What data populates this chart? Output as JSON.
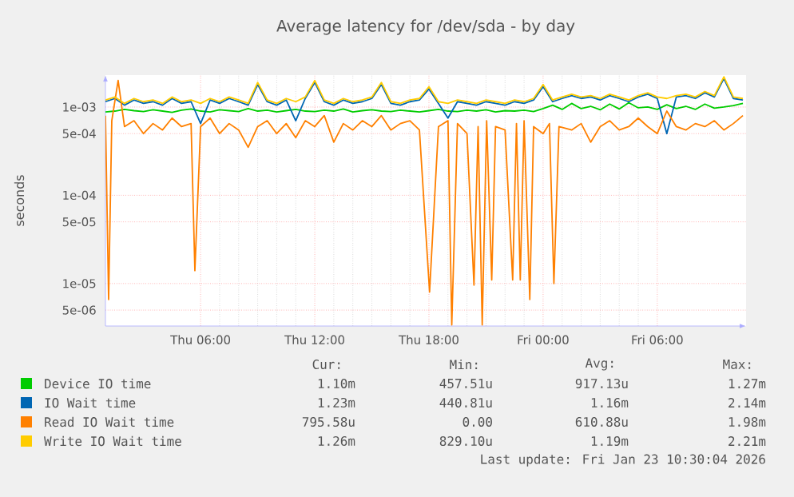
{
  "chart_data": {
    "type": "line",
    "title": "Average latency for /dev/sda - by day",
    "ylabel": "seconds",
    "log": "y",
    "grid": true,
    "legend": "bottom",
    "marker": "none",
    "line_style": "solid",
    "xlim": [
      "2026-01-22T01:00",
      "2026-01-23T10:40"
    ],
    "xticks": [
      {
        "value": "2026-01-22T06:00",
        "label": "Thu 06:00"
      },
      {
        "value": "2026-01-22T12:00",
        "label": "Thu 12:00"
      },
      {
        "value": "2026-01-22T18:00",
        "label": "Thu 18:00"
      },
      {
        "value": "2026-01-23T00:00",
        "label": "Fri 00:00"
      },
      {
        "value": "2026-01-23T06:00",
        "label": "Fri 06:00"
      }
    ],
    "ylim": [
      3.3e-06,
      0.0023
    ],
    "yticks": [
      {
        "value": 5e-06,
        "label": "5e-06"
      },
      {
        "value": 1e-05,
        "label": "1e-05"
      },
      {
        "value": 5e-05,
        "label": "5e-05"
      },
      {
        "value": 0.0001,
        "label": "1e-04"
      },
      {
        "value": 0.0005,
        "label": "5e-04"
      },
      {
        "value": 0.001,
        "label": "1e-03"
      }
    ],
    "x": [
      "2026-01-22T01:00",
      "2026-01-22T01:30",
      "2026-01-22T02:00",
      "2026-01-22T02:30",
      "2026-01-22T03:00",
      "2026-01-22T03:30",
      "2026-01-22T04:00",
      "2026-01-22T04:30",
      "2026-01-22T05:00",
      "2026-01-22T05:30",
      "2026-01-22T06:00",
      "2026-01-22T06:30",
      "2026-01-22T07:00",
      "2026-01-22T07:30",
      "2026-01-22T08:00",
      "2026-01-22T08:30",
      "2026-01-22T09:00",
      "2026-01-22T09:30",
      "2026-01-22T10:00",
      "2026-01-22T10:30",
      "2026-01-22T11:00",
      "2026-01-22T11:30",
      "2026-01-22T12:00",
      "2026-01-22T12:30",
      "2026-01-22T13:00",
      "2026-01-22T13:30",
      "2026-01-22T14:00",
      "2026-01-22T14:30",
      "2026-01-22T15:00",
      "2026-01-22T15:30",
      "2026-01-22T16:00",
      "2026-01-22T16:30",
      "2026-01-22T17:00",
      "2026-01-22T17:30",
      "2026-01-22T18:00",
      "2026-01-22T18:30",
      "2026-01-22T19:00",
      "2026-01-22T19:30",
      "2026-01-22T20:00",
      "2026-01-22T20:30",
      "2026-01-22T21:00",
      "2026-01-22T21:30",
      "2026-01-22T22:00",
      "2026-01-22T22:30",
      "2026-01-22T23:00",
      "2026-01-22T23:30",
      "2026-01-23T00:00",
      "2026-01-23T00:30",
      "2026-01-23T01:00",
      "2026-01-23T01:30",
      "2026-01-23T02:00",
      "2026-01-23T02:30",
      "2026-01-23T03:00",
      "2026-01-23T03:30",
      "2026-01-23T04:00",
      "2026-01-23T04:30",
      "2026-01-23T05:00",
      "2026-01-23T05:30",
      "2026-01-23T06:00",
      "2026-01-23T06:30",
      "2026-01-23T07:00",
      "2026-01-23T07:30",
      "2026-01-23T08:00",
      "2026-01-23T08:30",
      "2026-01-23T09:00",
      "2026-01-23T09:30",
      "2026-01-23T10:00",
      "2026-01-23T10:30"
    ],
    "series": [
      {
        "name": "Device IO time",
        "color": "#00cc00",
        "values": [
          0.00088,
          0.0009,
          0.00094,
          0.00091,
          0.00089,
          0.00093,
          0.0009,
          0.00087,
          0.00092,
          0.00095,
          0.0009,
          0.00088,
          0.00093,
          0.00091,
          0.00089,
          0.00096,
          0.0009,
          0.00092,
          0.00088,
          0.00091,
          0.00094,
          0.0009,
          0.00089,
          0.00092,
          0.0009,
          0.00095,
          0.00088,
          0.00091,
          0.00093,
          0.0009,
          0.00089,
          0.00092,
          0.0009,
          0.00088,
          0.00091,
          0.00094,
          0.0009,
          0.00089,
          0.00092,
          0.0009,
          0.00093,
          0.00088,
          0.00091,
          0.0009,
          0.00092,
          0.00089,
          0.00096,
          0.00105,
          0.00094,
          0.0011,
          0.00096,
          0.00102,
          0.00093,
          0.00108,
          0.00095,
          0.00112,
          0.00098,
          0.001,
          0.00094,
          0.00106,
          0.00096,
          0.00102,
          0.00094,
          0.00108,
          0.00097,
          0.001,
          0.00104,
          0.0011
        ]
      },
      {
        "name": "IO Wait time",
        "color": "#0066b3",
        "values": [
          0.00115,
          0.00125,
          0.00105,
          0.0012,
          0.0011,
          0.00115,
          0.00105,
          0.00125,
          0.0011,
          0.00115,
          0.00065,
          0.0012,
          0.0011,
          0.00125,
          0.00115,
          0.00105,
          0.0018,
          0.00115,
          0.00105,
          0.0012,
          0.0007,
          0.00125,
          0.0019,
          0.00115,
          0.00105,
          0.0012,
          0.0011,
          0.00115,
          0.00125,
          0.0018,
          0.0011,
          0.00105,
          0.00115,
          0.0012,
          0.0016,
          0.0011,
          0.00075,
          0.00115,
          0.0011,
          0.00105,
          0.00115,
          0.0011,
          0.00105,
          0.00115,
          0.0011,
          0.0012,
          0.0017,
          0.00115,
          0.00125,
          0.00135,
          0.00125,
          0.0013,
          0.0012,
          0.00135,
          0.00125,
          0.00115,
          0.0013,
          0.0014,
          0.00125,
          0.0005,
          0.0013,
          0.00135,
          0.00125,
          0.00145,
          0.0013,
          0.0021,
          0.00125,
          0.0012
        ]
      },
      {
        "name": "Read IO Wait time",
        "color": "#ff8000",
        "x": [
          "2026-01-22T01:00",
          "2026-01-22T01:10",
          "2026-01-22T01:20",
          "2026-01-22T01:40",
          "2026-01-22T02:00",
          "2026-01-22T02:30",
          "2026-01-22T03:00",
          "2026-01-22T03:30",
          "2026-01-22T04:00",
          "2026-01-22T04:30",
          "2026-01-22T05:00",
          "2026-01-22T05:30",
          "2026-01-22T05:42",
          "2026-01-22T06:00",
          "2026-01-22T06:30",
          "2026-01-22T07:00",
          "2026-01-22T07:30",
          "2026-01-22T08:00",
          "2026-01-22T08:30",
          "2026-01-22T09:00",
          "2026-01-22T09:30",
          "2026-01-22T10:00",
          "2026-01-22T10:30",
          "2026-01-22T11:00",
          "2026-01-22T11:30",
          "2026-01-22T12:00",
          "2026-01-22T12:30",
          "2026-01-22T13:00",
          "2026-01-22T13:30",
          "2026-01-22T14:00",
          "2026-01-22T14:30",
          "2026-01-22T15:00",
          "2026-01-22T15:30",
          "2026-01-22T16:00",
          "2026-01-22T16:30",
          "2026-01-22T17:00",
          "2026-01-22T17:30",
          "2026-01-22T18:02",
          "2026-01-22T18:30",
          "2026-01-22T19:00",
          "2026-01-22T19:12",
          "2026-01-22T19:30",
          "2026-01-22T20:00",
          "2026-01-22T20:22",
          "2026-01-22T20:35",
          "2026-01-22T20:48",
          "2026-01-22T21:02",
          "2026-01-22T21:18",
          "2026-01-22T21:30",
          "2026-01-22T22:00",
          "2026-01-22T22:24",
          "2026-01-22T22:36",
          "2026-01-22T22:48",
          "2026-01-22T23:00",
          "2026-01-22T23:18",
          "2026-01-22T23:30",
          "2026-01-23T00:00",
          "2026-01-23T00:20",
          "2026-01-23T00:34",
          "2026-01-23T00:50",
          "2026-01-23T01:30",
          "2026-01-23T02:00",
          "2026-01-23T02:30",
          "2026-01-23T03:00",
          "2026-01-23T03:30",
          "2026-01-23T04:00",
          "2026-01-23T04:30",
          "2026-01-23T05:00",
          "2026-01-23T05:30",
          "2026-01-23T06:00",
          "2026-01-23T06:30",
          "2026-01-23T07:00",
          "2026-01-23T07:30",
          "2026-01-23T08:00",
          "2026-01-23T08:30",
          "2026-01-23T09:00",
          "2026-01-23T09:30",
          "2026-01-23T10:00",
          "2026-01-23T10:30"
        ],
        "values": [
          0.0008,
          6.6e-06,
          0.0007,
          0.002,
          0.0006,
          0.0007,
          0.0005,
          0.00065,
          0.00055,
          0.00075,
          0.0006,
          0.00065,
          1.4e-05,
          0.0006,
          0.00075,
          0.0005,
          0.00065,
          0.00055,
          0.00035,
          0.0006,
          0.0007,
          0.0005,
          0.00065,
          0.00045,
          0.0007,
          0.0006,
          0.0008,
          0.0004,
          0.00065,
          0.00055,
          0.0007,
          0.0006,
          0.0008,
          0.00055,
          0.00065,
          0.0007,
          0.00055,
          8e-06,
          0.0006,
          0.0007,
          3.4e-06,
          0.00065,
          0.0005,
          9.6e-06,
          0.0006,
          3.4e-06,
          0.0007,
          1.1e-05,
          0.0006,
          0.00055,
          1.1e-05,
          0.00065,
          1.1e-05,
          0.0007,
          6.6e-06,
          0.0006,
          0.0005,
          0.00065,
          1e-05,
          0.0006,
          0.00055,
          0.00065,
          0.0004,
          0.0006,
          0.0007,
          0.00055,
          0.0006,
          0.00075,
          0.0006,
          0.0005,
          0.0009,
          0.0006,
          0.00055,
          0.00065,
          0.0006,
          0.0007,
          0.00055,
          0.00065,
          0.0008
        ]
      },
      {
        "name": "Write IO Wait time",
        "color": "#ffcc00",
        "values": [
          0.0012,
          0.0013,
          0.0011,
          0.00125,
          0.00115,
          0.0012,
          0.0011,
          0.0013,
          0.00115,
          0.0012,
          0.0011,
          0.00125,
          0.00115,
          0.0013,
          0.0012,
          0.0011,
          0.0019,
          0.0012,
          0.0011,
          0.00125,
          0.00115,
          0.0013,
          0.002,
          0.0012,
          0.0011,
          0.00125,
          0.00115,
          0.0012,
          0.0013,
          0.0019,
          0.00115,
          0.0011,
          0.0012,
          0.00125,
          0.0017,
          0.00115,
          0.0011,
          0.0012,
          0.00115,
          0.0011,
          0.0012,
          0.00115,
          0.0011,
          0.0012,
          0.00115,
          0.00125,
          0.0018,
          0.0012,
          0.0013,
          0.0014,
          0.0013,
          0.00135,
          0.00125,
          0.0014,
          0.0013,
          0.0012,
          0.00135,
          0.00145,
          0.0013,
          0.00125,
          0.00135,
          0.0014,
          0.0013,
          0.0015,
          0.00135,
          0.0022,
          0.0013,
          0.00125
        ]
      }
    ],
    "annotations": [
      "Cur:",
      "Min:",
      "Avg:",
      "Max:",
      "1.10m",
      "457.51u",
      "917.13u",
      "1.27m",
      "1.23m",
      "440.81u",
      "1.16m",
      "2.14m",
      "795.58u",
      "0.00",
      "610.88u",
      "1.98m",
      "1.26m",
      "829.10u",
      "1.19m",
      "2.21m",
      "Last update: Fri Jan 23 10:30:04 2026"
    ]
  }
}
